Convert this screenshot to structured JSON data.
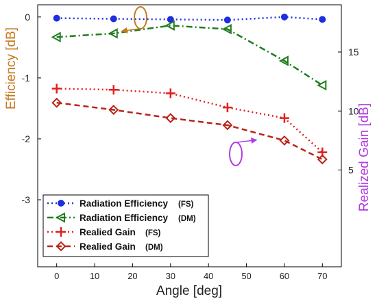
{
  "chart_data": {
    "type": "line",
    "x": [
      0,
      15,
      30,
      45,
      60,
      70
    ],
    "xlabel": "Angle [deg]",
    "xlim": [
      -5,
      75
    ],
    "xticks": [
      "0",
      "10",
      "20",
      "30",
      "40",
      "50",
      "60",
      "70"
    ],
    "ylabel_left": "Efficiency [dB]",
    "ylim_left": [
      -4.1,
      0.2
    ],
    "yticks_left": [
      "0",
      "-1",
      "-2",
      "-3"
    ],
    "ylabel_right": "Realized Gain [dB]",
    "ylim_right": [
      -3.2,
      19.0
    ],
    "yticks_right": [
      "5",
      "10",
      "15"
    ],
    "grid": false,
    "legend_position": "bottom-left",
    "series": [
      {
        "name": "Radiation Efficiency",
        "tag": "(FS)",
        "axis": "left",
        "color": "#1f2fe0",
        "line": "dotted",
        "marker": "circle",
        "values": [
          -0.02,
          -0.03,
          -0.04,
          -0.05,
          0.0,
          -0.04
        ]
      },
      {
        "name": "Radiation Efficiency",
        "tag": "(DM)",
        "axis": "left",
        "color": "#1e7d1e",
        "line": "dashdot",
        "marker": "triangle-left",
        "values": [
          -0.33,
          -0.27,
          -0.14,
          -0.2,
          -0.72,
          -1.12
        ]
      },
      {
        "name": "Realied Gain",
        "tag": "(FS)",
        "axis": "right",
        "color": "#e0201e",
        "line": "dotted",
        "marker": "plus",
        "values": [
          11.9,
          11.8,
          11.5,
          10.3,
          9.4,
          6.5
        ]
      },
      {
        "name": "Realied Gain",
        "tag": "(DM)",
        "axis": "right",
        "color": "#b82418",
        "line": "dashed",
        "marker": "diamond",
        "values": [
          10.7,
          10.1,
          9.4,
          8.8,
          7.5,
          5.9
        ]
      }
    ],
    "annotations": {
      "left_axis_color": "#c47a1e",
      "right_axis_color": "#b23ce0"
    }
  }
}
